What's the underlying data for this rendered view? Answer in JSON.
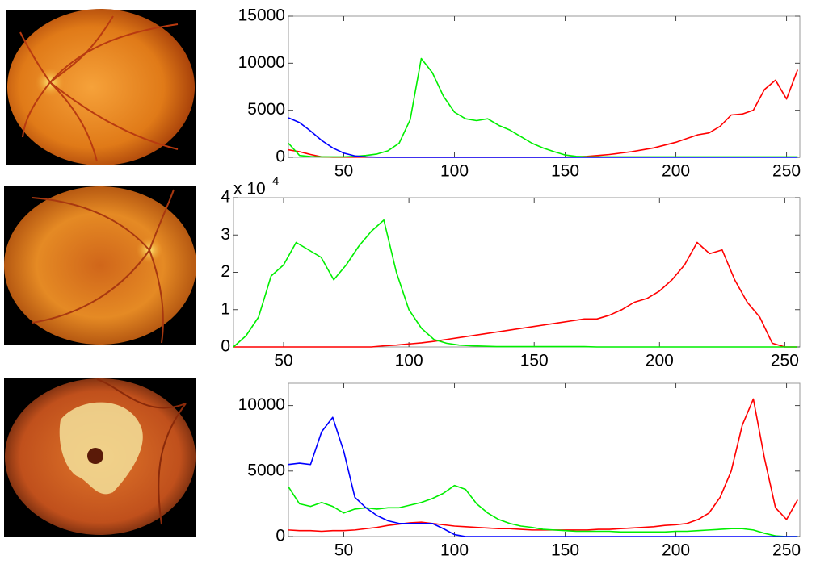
{
  "chart_data": [
    {
      "type": "line",
      "xlim": [
        25,
        256
      ],
      "ylim": [
        0,
        15000
      ],
      "xticks": [
        50,
        100,
        150,
        200,
        250
      ],
      "yticks": [
        0,
        5000,
        10000,
        15000
      ],
      "x": [
        25,
        30,
        35,
        40,
        45,
        50,
        55,
        60,
        65,
        70,
        75,
        80,
        85,
        90,
        95,
        100,
        105,
        110,
        115,
        120,
        125,
        130,
        135,
        140,
        145,
        150,
        155,
        160,
        165,
        170,
        175,
        180,
        185,
        190,
        195,
        200,
        205,
        210,
        215,
        220,
        225,
        230,
        235,
        240,
        245,
        250,
        255
      ],
      "series": [
        {
          "color": "#ff0000",
          "values": [
            800,
            600,
            300,
            50,
            20,
            20,
            20,
            20,
            20,
            20,
            20,
            20,
            20,
            20,
            20,
            20,
            20,
            20,
            20,
            20,
            20,
            20,
            20,
            20,
            20,
            20,
            50,
            100,
            200,
            300,
            450,
            600,
            800,
            1000,
            1300,
            1600,
            2000,
            2400,
            2600,
            3300,
            4500,
            4600,
            5000,
            7200,
            8200,
            6200,
            9300
          ]
        },
        {
          "color": "#00ee00",
          "values": [
            1500,
            200,
            80,
            50,
            50,
            50,
            100,
            200,
            350,
            700,
            1500,
            4000,
            10500,
            9000,
            6500,
            4800,
            4100,
            3900,
            4100,
            3400,
            2900,
            2200,
            1500,
            1000,
            600,
            250,
            100,
            50,
            50,
            50,
            50,
            50,
            50,
            50,
            50,
            50,
            50,
            50,
            50,
            50,
            50,
            50,
            50,
            50,
            50,
            50,
            50
          ]
        },
        {
          "color": "#0000ff",
          "values": [
            4200,
            3700,
            2800,
            1800,
            1000,
            450,
            150,
            50,
            20,
            0,
            0,
            0,
            0,
            0,
            0,
            0,
            0,
            0,
            0,
            0,
            0,
            0,
            0,
            0,
            0,
            0,
            0,
            0,
            0,
            0,
            0,
            0,
            0,
            0,
            0,
            0,
            0,
            0,
            0,
            0,
            0,
            0,
            0,
            0,
            0,
            0,
            0
          ]
        }
      ]
    },
    {
      "type": "line",
      "xlim": [
        30,
        256
      ],
      "ylim": [
        0,
        40000
      ],
      "xticks": [
        50,
        100,
        150,
        200,
        250
      ],
      "yticks": [
        0,
        {
          "value": 10000,
          "label": "1"
        },
        {
          "value": 20000,
          "label": "2"
        },
        {
          "value": 30000,
          "label": "3"
        },
        {
          "value": 40000,
          "label": "4"
        }
      ],
      "y_scale_label": {
        "base": "x 10",
        "exponent": "4"
      },
      "x": [
        30,
        35,
        40,
        45,
        50,
        55,
        60,
        65,
        70,
        75,
        80,
        85,
        90,
        95,
        100,
        105,
        110,
        115,
        120,
        125,
        130,
        135,
        140,
        145,
        150,
        155,
        160,
        165,
        170,
        175,
        180,
        185,
        190,
        195,
        200,
        205,
        210,
        215,
        220,
        225,
        230,
        235,
        240,
        245,
        250,
        255
      ],
      "series": [
        {
          "color": "#ff0000",
          "values": [
            0,
            0,
            0,
            0,
            0,
            0,
            0,
            0,
            0,
            0,
            0,
            0,
            300,
            500,
            800,
            1100,
            1500,
            2000,
            2500,
            3000,
            3500,
            4000,
            4500,
            5000,
            5500,
            6000,
            6500,
            7000,
            7500,
            7500,
            8500,
            10000,
            12000,
            13000,
            15000,
            18000,
            22000,
            28000,
            25000,
            26000,
            18000,
            12000,
            8000,
            1000,
            0,
            0
          ]
        },
        {
          "color": "#00ee00",
          "values": [
            0,
            3000,
            8000,
            19000,
            22000,
            28000,
            26000,
            24000,
            18000,
            22000,
            27000,
            31000,
            34000,
            20000,
            10000,
            5000,
            2000,
            1000,
            500,
            300,
            200,
            100,
            100,
            100,
            100,
            100,
            100,
            100,
            100,
            0,
            0,
            0,
            0,
            0,
            0,
            0,
            0,
            0,
            0,
            0,
            0,
            0,
            0,
            0,
            0,
            0
          ]
        }
      ]
    },
    {
      "type": "line",
      "xlim": [
        25,
        256
      ],
      "ylim": [
        0,
        11700
      ],
      "xticks": [
        50,
        100,
        150,
        200,
        250
      ],
      "yticks": [
        0,
        5000,
        10000
      ],
      "x": [
        25,
        30,
        35,
        40,
        45,
        50,
        55,
        60,
        65,
        70,
        75,
        80,
        85,
        90,
        95,
        100,
        105,
        110,
        115,
        120,
        125,
        130,
        135,
        140,
        145,
        150,
        155,
        160,
        165,
        170,
        175,
        180,
        185,
        190,
        195,
        200,
        205,
        210,
        215,
        220,
        225,
        230,
        235,
        240,
        245,
        250,
        255
      ],
      "series": [
        {
          "color": "#ff0000",
          "values": [
            500,
            450,
            450,
            400,
            450,
            450,
            500,
            600,
            700,
            850,
            950,
            1050,
            1100,
            1000,
            900,
            800,
            750,
            700,
            650,
            600,
            600,
            550,
            500,
            500,
            500,
            500,
            500,
            500,
            550,
            550,
            600,
            650,
            700,
            750,
            850,
            900,
            1000,
            1300,
            1800,
            3000,
            5000,
            8500,
            10500,
            6000,
            2200,
            1300,
            2800
          ]
        },
        {
          "color": "#00ee00",
          "values": [
            3800,
            2500,
            2300,
            2600,
            2300,
            1800,
            2100,
            2200,
            2100,
            2200,
            2200,
            2400,
            2600,
            2900,
            3300,
            3900,
            3600,
            2500,
            1800,
            1300,
            1000,
            800,
            700,
            550,
            500,
            450,
            400,
            400,
            400,
            400,
            350,
            350,
            350,
            350,
            350,
            400,
            400,
            450,
            500,
            550,
            600,
            600,
            500,
            250,
            50,
            0,
            0
          ]
        },
        {
          "color": "#0000ff",
          "values": [
            5500,
            5600,
            5500,
            8000,
            9100,
            6500,
            3000,
            2200,
            1600,
            1200,
            1000,
            1000,
            1000,
            1000,
            600,
            150,
            0,
            0,
            0,
            0,
            0,
            0,
            0,
            0,
            0,
            0,
            0,
            0,
            0,
            0,
            0,
            0,
            0,
            0,
            0,
            0,
            0,
            0,
            0,
            0,
            0,
            0,
            0,
            0,
            0,
            0,
            0
          ]
        }
      ]
    }
  ]
}
